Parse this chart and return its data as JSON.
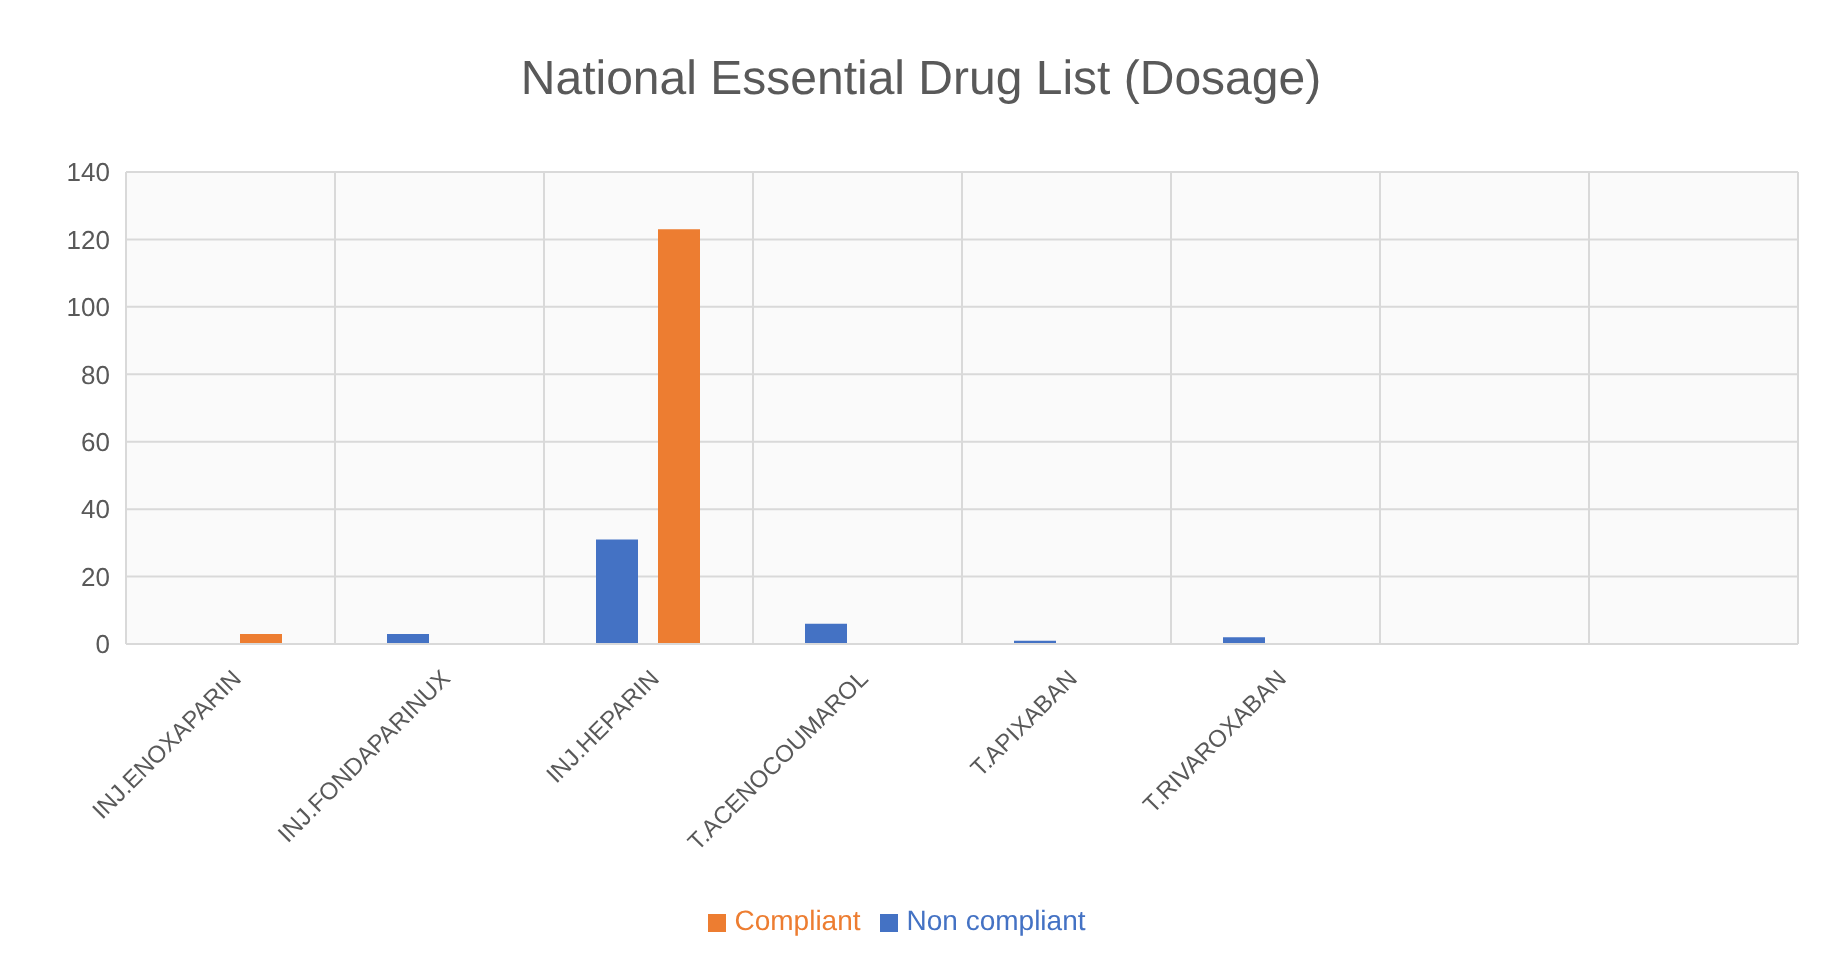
{
  "chart_data": {
    "type": "bar",
    "title": "National Essential Drug List (Dosage)",
    "categories": [
      "INJ.ENOXAPARIN",
      "INJ.FONDAPARINUX",
      "INJ.HEPARIN",
      "T.ACENOCOUMAROL",
      "T.APIXABAN",
      "T.RIVAROXABAN",
      null,
      null
    ],
    "series": [
      {
        "name": "Non compliant",
        "color": "#4472c4",
        "values": [
          0,
          3,
          31,
          6,
          1,
          2,
          null,
          null
        ]
      },
      {
        "name": "Compliant",
        "color": "#ed7d31",
        "values": [
          3,
          0,
          123,
          0,
          0,
          0,
          null,
          null
        ]
      }
    ],
    "ylim": [
      0,
      140
    ],
    "yticks": [
      0,
      20,
      40,
      60,
      80,
      100,
      120,
      140
    ],
    "grid": true,
    "legend": "bottom"
  }
}
